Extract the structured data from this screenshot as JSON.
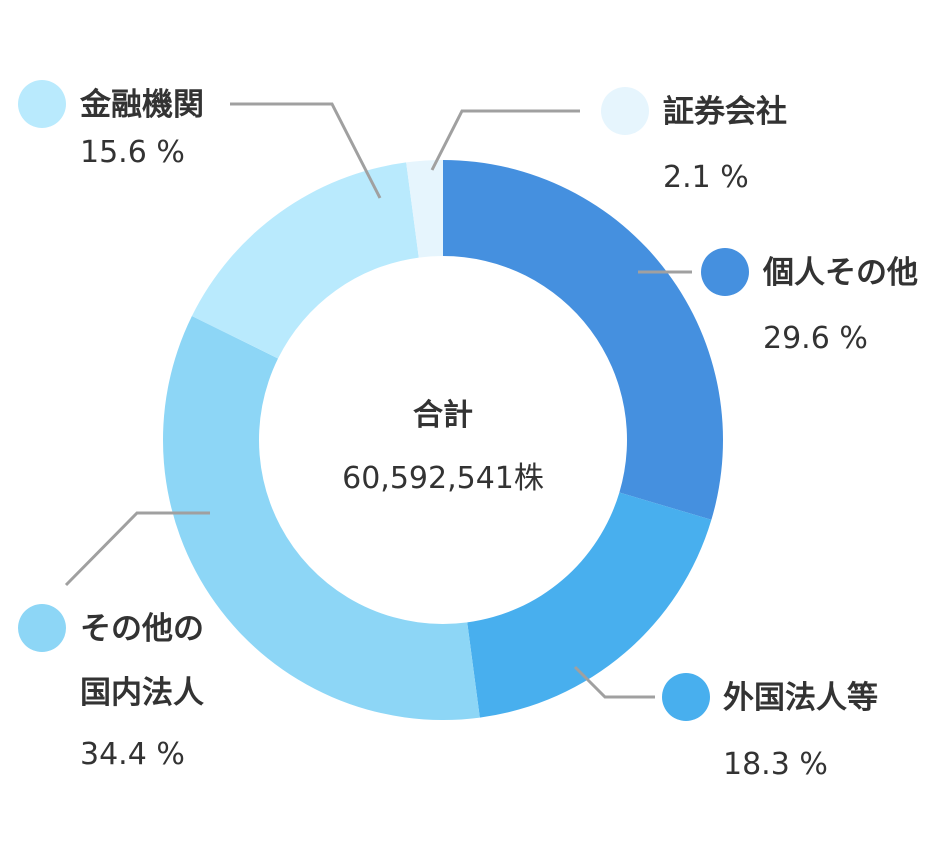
{
  "chart_data": {
    "type": "pie",
    "variant": "donut",
    "center": {
      "title": "合計",
      "value": "60,592,541株"
    },
    "unit": "%",
    "legend_placement": "around",
    "slices": [
      {
        "key": "kojin",
        "name_lines": [
          "個人その他"
        ],
        "value": 29.6,
        "value_label": "29.6 %",
        "color": "#4590df"
      },
      {
        "key": "gaikoku",
        "name_lines": [
          "外国法人等"
        ],
        "value": 18.3,
        "value_label": "18.3 %",
        "color": "#48afee"
      },
      {
        "key": "kokunai",
        "name_lines": [
          "その他の",
          "国内法人"
        ],
        "value": 34.4,
        "value_label": "34.4 %",
        "color": "#8dd6f6"
      },
      {
        "key": "kinyu",
        "name_lines": [
          "金融機関"
        ],
        "value": 15.6,
        "value_label": "15.6 %",
        "color": "#b9eafd"
      },
      {
        "key": "shoken",
        "name_lines": [
          "証券会社"
        ],
        "value": 2.1,
        "value_label": "2.1 %",
        "color": "#e6f5fd"
      }
    ]
  }
}
